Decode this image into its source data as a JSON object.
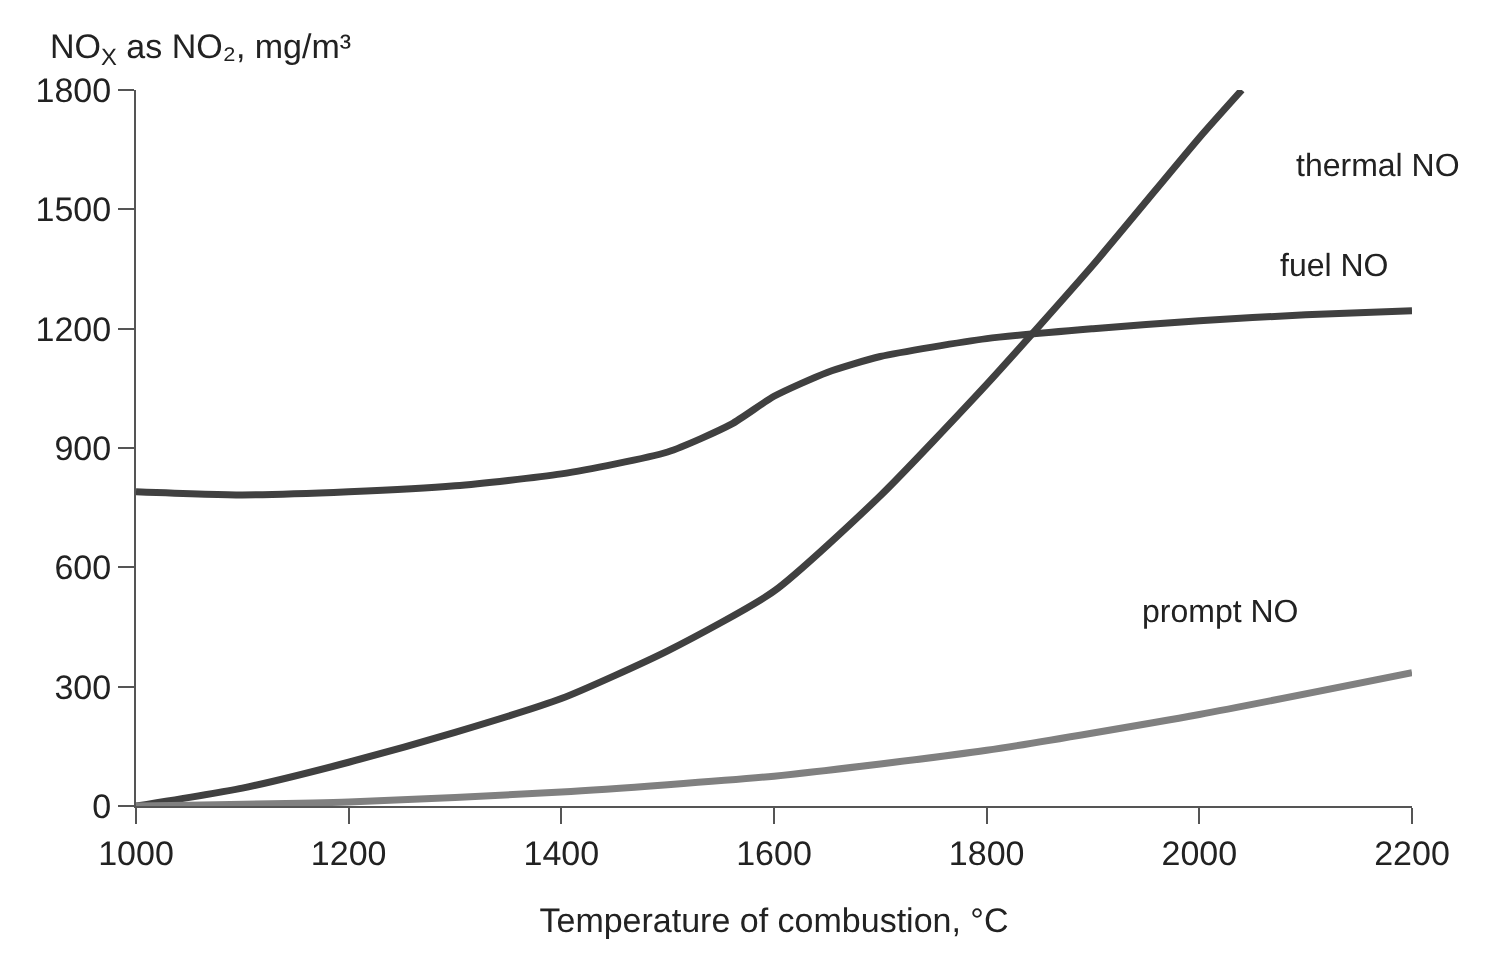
{
  "chart_data": {
    "type": "line",
    "xlabel": "Temperature of combustion, °C",
    "ylabel": "NO$_{X}$ as NO₂, mg/m³",
    "xlim": [
      1000,
      2200
    ],
    "xticks": [
      1000,
      1200,
      1400,
      1600,
      1800,
      2000,
      2200
    ],
    "ylim": [
      0,
      1800
    ],
    "yticks": [
      0,
      300,
      600,
      900,
      1200,
      1500,
      1800
    ],
    "marker": "none",
    "line_style": "solid",
    "series": [
      {
        "name": "thermal NO",
        "color": "#404040",
        "x": [
          1000,
          1100,
          1200,
          1300,
          1400,
          1500,
          1600,
          1700,
          1800,
          1900,
          2000,
          2040
        ],
        "values": [
          0,
          45,
          110,
          185,
          270,
          390,
          540,
          780,
          1060,
          1360,
          1680,
          1800
        ]
      },
      {
        "name": "fuel NO",
        "color": "#404040",
        "x": [
          1000,
          1100,
          1200,
          1300,
          1400,
          1500,
          1560,
          1600,
          1650,
          1700,
          1800,
          1900,
          2000,
          2100,
          2200
        ],
        "values": [
          790,
          782,
          790,
          805,
          835,
          890,
          960,
          1030,
          1090,
          1130,
          1175,
          1200,
          1220,
          1235,
          1245
        ]
      },
      {
        "name": "prompt NO",
        "color": "#808080",
        "x": [
          1000,
          1200,
          1400,
          1600,
          1800,
          2000,
          2200
        ],
        "values": [
          0,
          10,
          35,
          75,
          140,
          230,
          335
        ]
      }
    ]
  }
}
